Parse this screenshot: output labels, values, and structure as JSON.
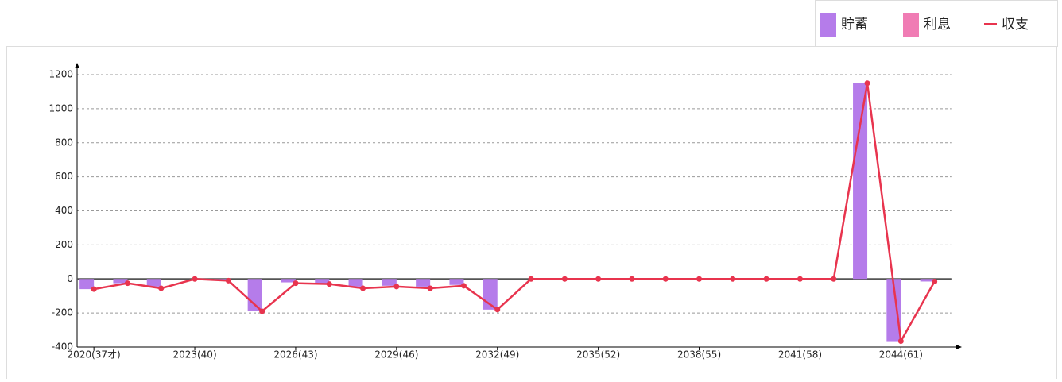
{
  "chart_data": {
    "type": "bar-line",
    "categories": [
      "2020(37才)",
      null,
      null,
      "2023(40)",
      null,
      null,
      "2026(43)",
      null,
      null,
      "2029(46)",
      null,
      null,
      "2032(49)",
      null,
      null,
      "2035(52)",
      null,
      null,
      "2038(55)",
      null,
      null,
      "2041(58)",
      null,
      null,
      "2044(61)",
      null
    ],
    "series": [
      {
        "name": "貯蓄",
        "color": "#b57cea",
        "type": "bar",
        "values": [
          -60,
          -25,
          -45,
          0,
          -5,
          -190,
          -20,
          -25,
          -45,
          -40,
          -45,
          -35,
          -180,
          0,
          0,
          0,
          0,
          0,
          0,
          0,
          0,
          0,
          0,
          1150,
          -370,
          -15
        ]
      },
      {
        "name": "利息",
        "color": "#f07cb4",
        "type": "bar",
        "values": [
          0,
          0,
          0,
          0,
          0,
          0,
          0,
          0,
          0,
          0,
          0,
          0,
          0,
          0,
          0,
          0,
          0,
          0,
          0,
          0,
          0,
          0,
          0,
          0,
          0,
          0
        ]
      },
      {
        "name": "収支",
        "color": "#e8344e",
        "type": "line",
        "values": [
          -60,
          -25,
          -55,
          0,
          -10,
          -190,
          -25,
          -30,
          -55,
          -45,
          -55,
          -40,
          -180,
          0,
          0,
          0,
          0,
          0,
          0,
          0,
          0,
          0,
          0,
          1150,
          -365,
          -15
        ]
      }
    ],
    "ylim": [
      -400,
      1200
    ],
    "yticks": [
      -400,
      -200,
      0,
      200,
      400,
      600,
      800,
      1000,
      1200
    ],
    "yticks_labels_note_free": null,
    "grid": true,
    "legend": "top-right"
  }
}
